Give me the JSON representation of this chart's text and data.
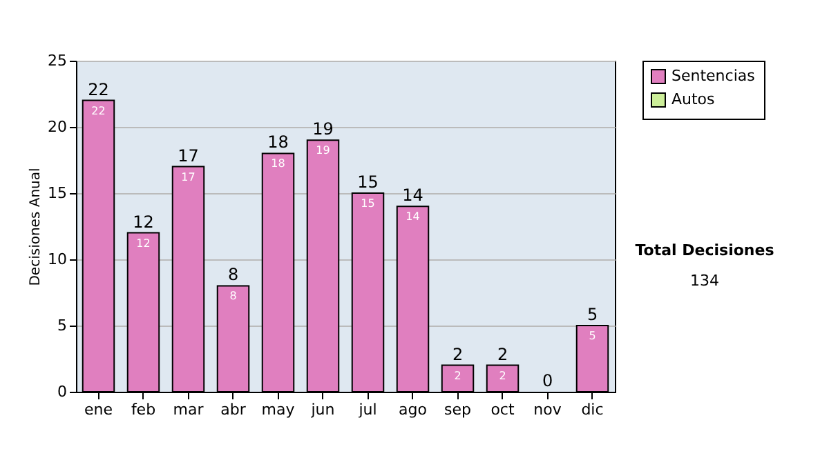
{
  "chart_data": {
    "type": "bar",
    "ylabel": "Decisiones Anual",
    "categories": [
      "ene",
      "feb",
      "mar",
      "abr",
      "may",
      "jun",
      "jul",
      "ago",
      "sep",
      "oct",
      "nov",
      "dic"
    ],
    "series": [
      {
        "name": "Sentencias",
        "color": "#e07fbf",
        "values": [
          22,
          12,
          17,
          8,
          18,
          19,
          15,
          14,
          2,
          2,
          0,
          5
        ],
        "value_labels": [
          "22",
          "12",
          "17",
          "8",
          "18",
          "19",
          "15",
          "14",
          "2",
          "2",
          null,
          "5"
        ]
      },
      {
        "name": "Autos",
        "color": "#ccee99",
        "values": [
          null,
          null,
          null,
          null,
          null,
          null,
          null,
          null,
          null,
          null,
          null,
          null
        ]
      }
    ],
    "totals": [
      "22",
      "12",
      "17",
      "8",
      "18",
      "19",
      "15",
      "14",
      "2",
      "2",
      "0",
      "5"
    ],
    "ylim": [
      0,
      25
    ],
    "yticks": [
      0,
      5,
      10,
      15,
      20,
      25
    ],
    "grid": "y",
    "legend": "right",
    "annotations": [
      "Total Decisiones",
      "134"
    ]
  }
}
